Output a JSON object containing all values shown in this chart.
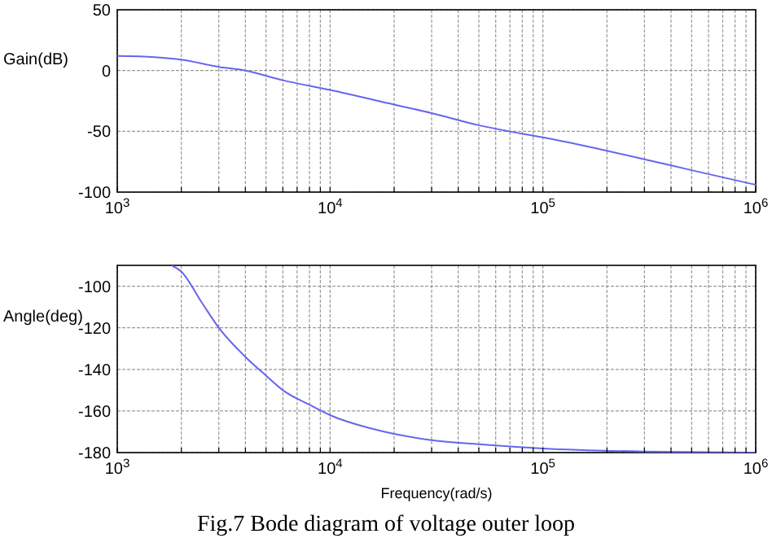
{
  "chart_data": [
    {
      "type": "line",
      "ylabel": "Gain(dB)",
      "log": "x",
      "grid": true,
      "xlim": [
        1000,
        1000000
      ],
      "ylim": [
        -100,
        50
      ],
      "xticks": [
        {
          "value": 1000,
          "label": "10$^{3}$"
        },
        {
          "value": 2000,
          "label": null
        },
        {
          "value": 3000,
          "label": null
        },
        {
          "value": 4000,
          "label": null
        },
        {
          "value": 5000,
          "label": null
        },
        {
          "value": 6000,
          "label": null
        },
        {
          "value": 7000,
          "label": null
        },
        {
          "value": 8000,
          "label": null
        },
        {
          "value": 9000,
          "label": null
        },
        {
          "value": 10000,
          "label": "10$^{4}$"
        },
        {
          "value": 20000,
          "label": null
        },
        {
          "value": 30000,
          "label": null
        },
        {
          "value": 40000,
          "label": null
        },
        {
          "value": 50000,
          "label": null
        },
        {
          "value": 60000,
          "label": null
        },
        {
          "value": 70000,
          "label": null
        },
        {
          "value": 80000,
          "label": null
        },
        {
          "value": 90000,
          "label": null
        },
        {
          "value": 100000,
          "label": "10$^{5}$"
        },
        {
          "value": 200000,
          "label": null
        },
        {
          "value": 300000,
          "label": null
        },
        {
          "value": 400000,
          "label": null
        },
        {
          "value": 500000,
          "label": null
        },
        {
          "value": 600000,
          "label": null
        },
        {
          "value": 700000,
          "label": null
        },
        {
          "value": 800000,
          "label": null
        },
        {
          "value": 900000,
          "label": null
        },
        {
          "value": 1000000,
          "label": "10$^{6}$"
        }
      ],
      "yticks": [
        -100,
        -50,
        0,
        50
      ],
      "series": [
        {
          "color": "#6666ee",
          "x": [
            1000,
            1500,
            2000,
            3000,
            4000,
            6000,
            10000,
            20000,
            30000,
            50000,
            80000,
            100000,
            200000,
            300000,
            500000,
            1000000
          ],
          "values": [
            12,
            11,
            9,
            3,
            0,
            -8,
            -16,
            -28,
            -35,
            -45,
            -52,
            -55,
            -66,
            -73,
            -82,
            -94
          ]
        }
      ]
    },
    {
      "type": "line",
      "ylabel": "Angle(deg)",
      "xlabel": "Frequency(rad/s)",
      "log": "x",
      "grid": true,
      "annotations": [
        "Fig.7  Bode diagram of voltage outer loop"
      ],
      "xlim": [
        1000,
        1000000
      ],
      "ylim": [
        -180,
        -90
      ],
      "xticks": [
        {
          "value": 1000,
          "label": "10$^{3}$"
        },
        {
          "value": 2000,
          "label": null
        },
        {
          "value": 3000,
          "label": null
        },
        {
          "value": 4000,
          "label": null
        },
        {
          "value": 5000,
          "label": null
        },
        {
          "value": 6000,
          "label": null
        },
        {
          "value": 7000,
          "label": null
        },
        {
          "value": 8000,
          "label": null
        },
        {
          "value": 9000,
          "label": null
        },
        {
          "value": 10000,
          "label": "10$^{4}$"
        },
        {
          "value": 20000,
          "label": null
        },
        {
          "value": 30000,
          "label": null
        },
        {
          "value": 40000,
          "label": null
        },
        {
          "value": 50000,
          "label": null
        },
        {
          "value": 60000,
          "label": null
        },
        {
          "value": 70000,
          "label": null
        },
        {
          "value": 80000,
          "label": null
        },
        {
          "value": 90000,
          "label": null
        },
        {
          "value": 100000,
          "label": "10$^{5}$"
        },
        {
          "value": 200000,
          "label": null
        },
        {
          "value": 300000,
          "label": null
        },
        {
          "value": 400000,
          "label": null
        },
        {
          "value": 500000,
          "label": null
        },
        {
          "value": 600000,
          "label": null
        },
        {
          "value": 700000,
          "label": null
        },
        {
          "value": 800000,
          "label": null
        },
        {
          "value": 900000,
          "label": null
        },
        {
          "value": 1000000,
          "label": "10$^{6}$"
        }
      ],
      "yticks": [
        -180,
        -160,
        -140,
        -120,
        -100
      ],
      "series": [
        {
          "color": "#6666ee",
          "x": [
            1800,
            2000,
            2500,
            3000,
            4000,
            5000,
            6000,
            8000,
            10000,
            15000,
            20000,
            30000,
            50000,
            100000,
            300000,
            1000000
          ],
          "values": [
            -90,
            -93,
            -108,
            -120,
            -134,
            -143,
            -150,
            -157,
            -162,
            -168,
            -171,
            -174,
            -176,
            -178,
            -179.5,
            -180
          ]
        }
      ]
    }
  ]
}
